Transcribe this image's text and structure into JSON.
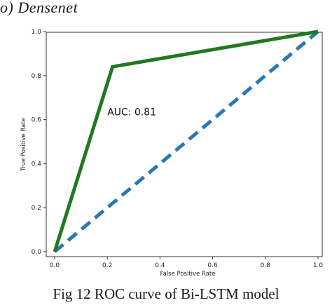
{
  "panel_label": "o)  Densenet",
  "caption": "Fig 12 ROC curve of Bi-LSTM model",
  "chart_data": {
    "type": "line",
    "title": "",
    "xlabel": "False Positive Rate",
    "ylabel": "True Positive Rate",
    "xlim": [
      0.0,
      1.0
    ],
    "ylim": [
      0.0,
      1.0
    ],
    "xticks": [
      "0.0",
      "0.2",
      "0.4",
      "0.6",
      "0.8",
      "1.0"
    ],
    "yticks": [
      "0.0",
      "0.2",
      "0.4",
      "0.6",
      "0.8",
      "1.0"
    ],
    "grid": false,
    "annotation": {
      "text": "AUC: 0.81",
      "x": 0.2,
      "y": 0.62
    },
    "series": [
      {
        "style": "solid",
        "color": "#1f7a1f",
        "x": [
          0.0,
          0.22,
          1.0
        ],
        "y": [
          0.0,
          0.84,
          1.0
        ]
      },
      {
        "style": "dashed",
        "color": "#2a77b4",
        "x": [
          0.0,
          1.0
        ],
        "y": [
          0.0,
          1.0
        ]
      }
    ]
  }
}
